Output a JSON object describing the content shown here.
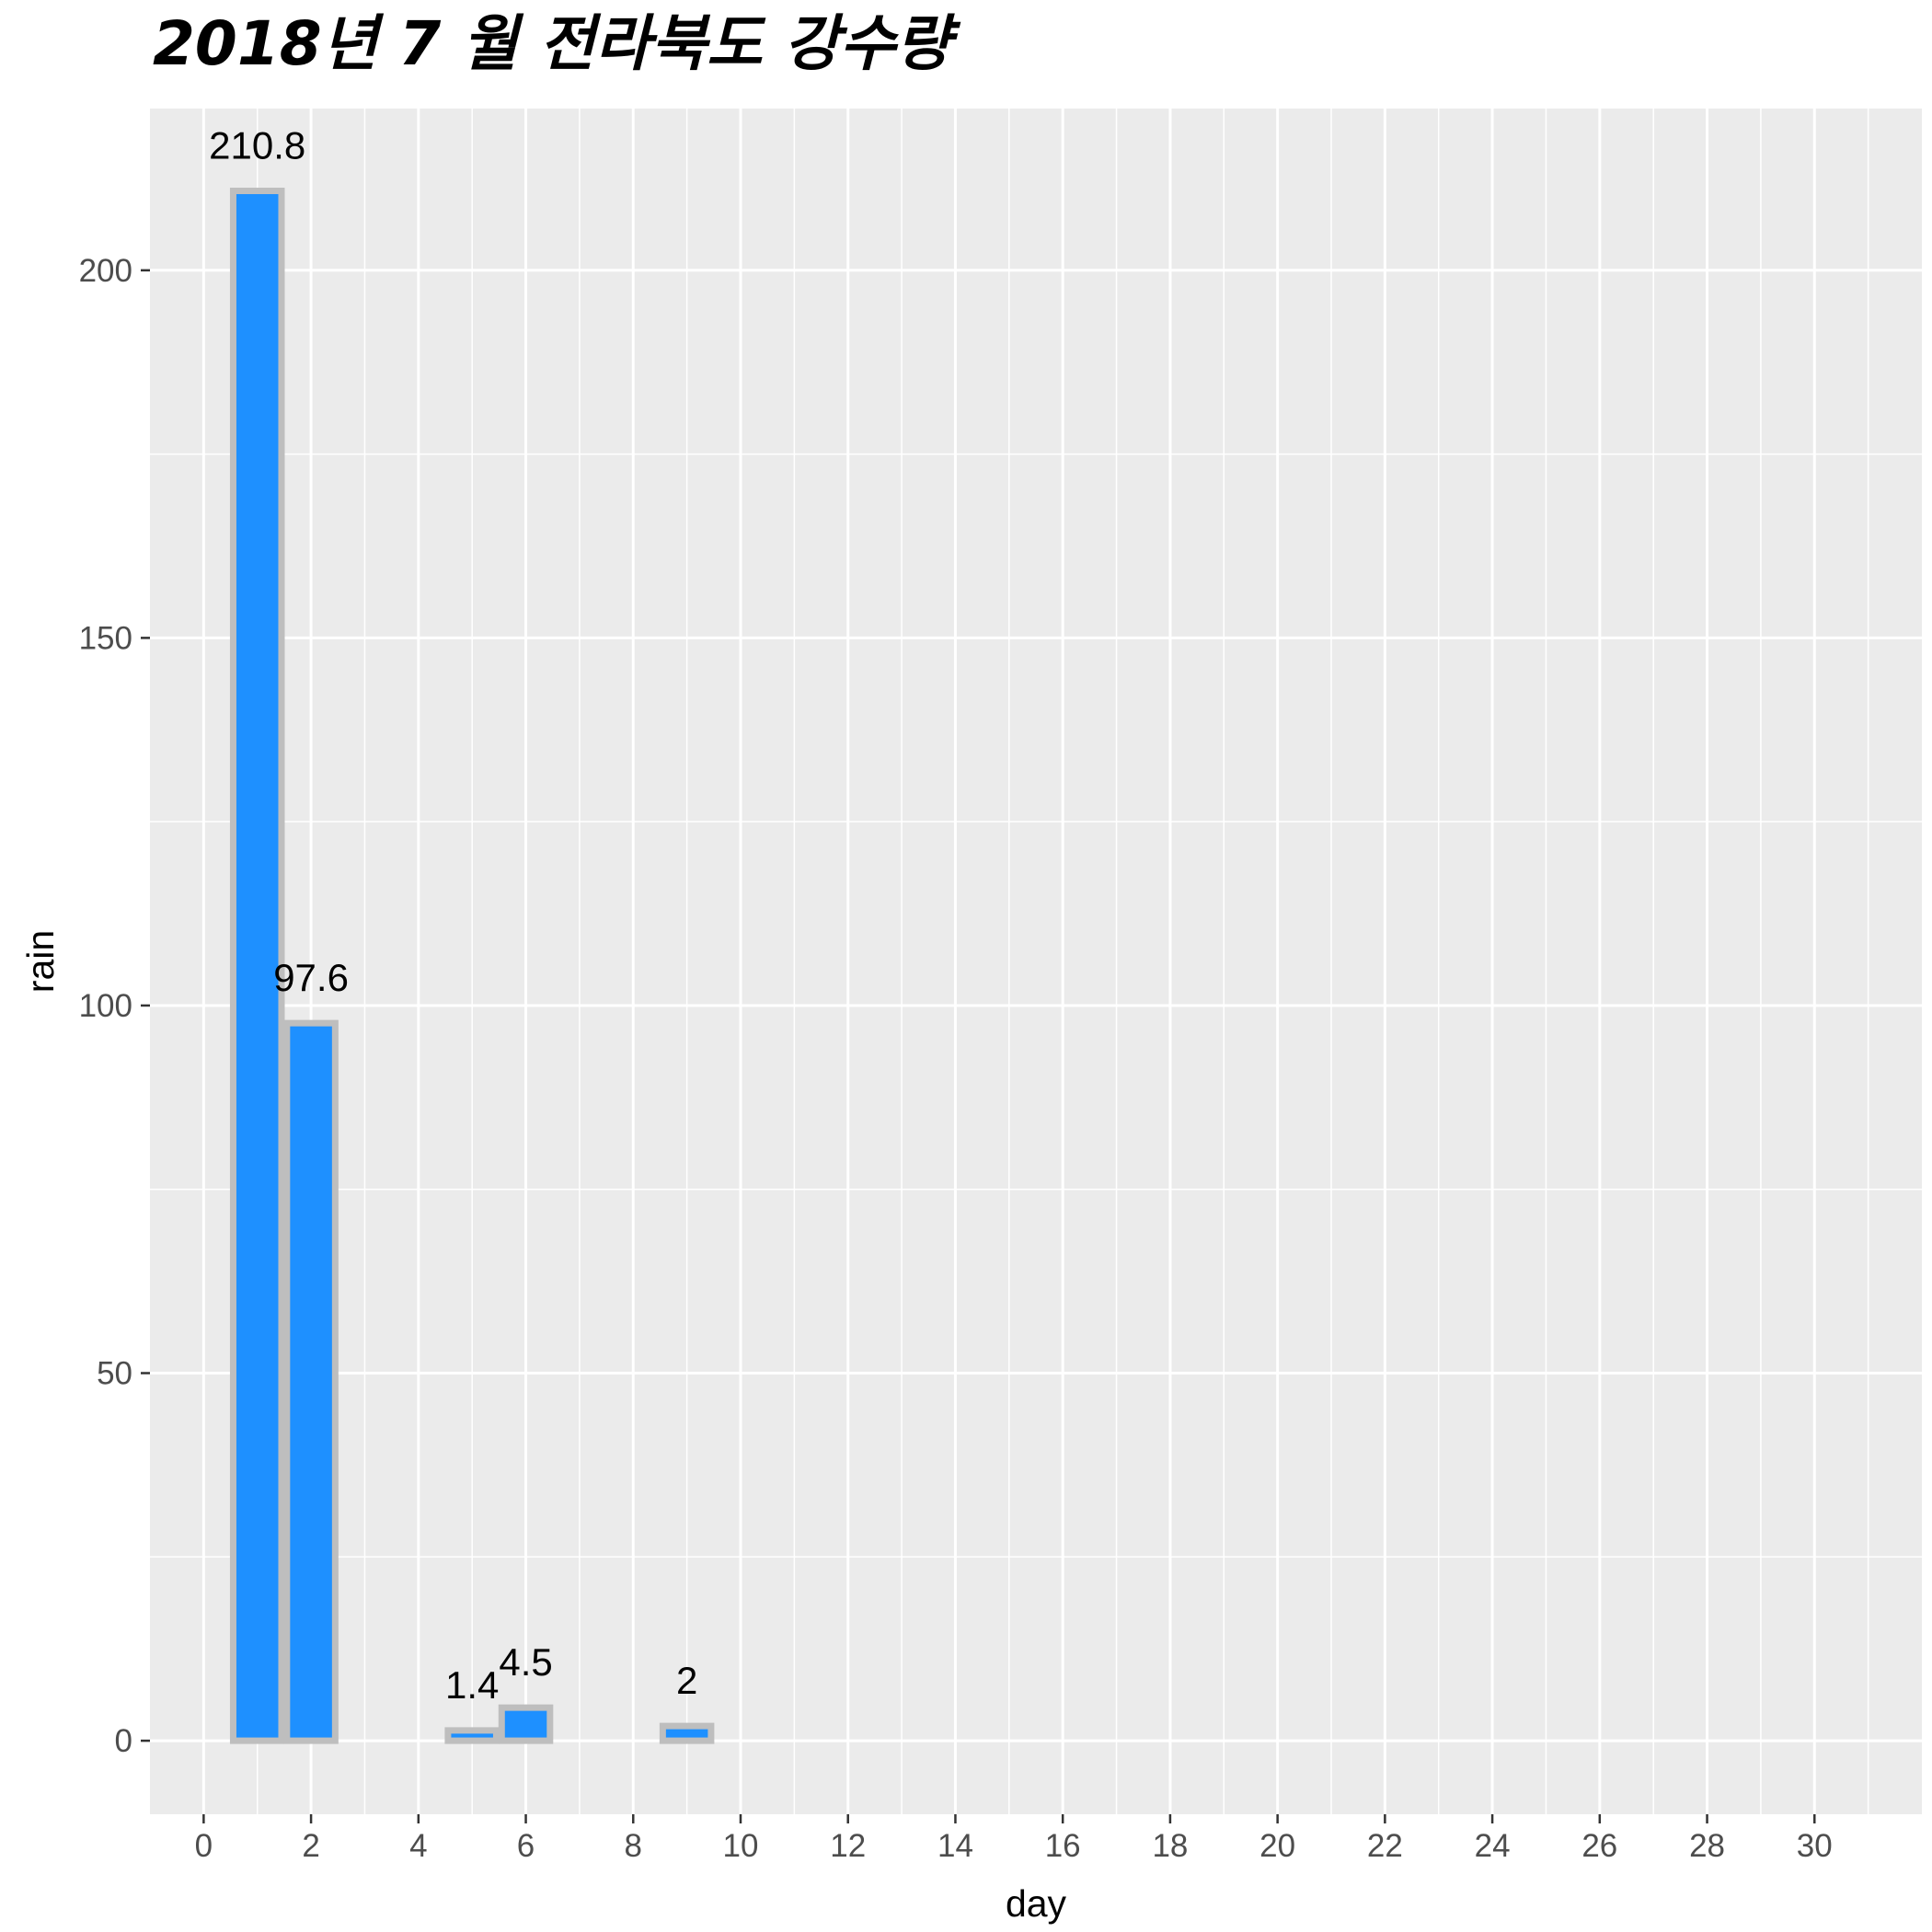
{
  "chart_data": {
    "type": "bar",
    "title": "2018년 7 월 전라북도 강수량",
    "xlabel": "day",
    "ylabel": "rain",
    "x_ticks": [
      0,
      2,
      4,
      6,
      8,
      10,
      12,
      14,
      16,
      18,
      20,
      22,
      24,
      26,
      28,
      30
    ],
    "y_ticks": [
      0,
      50,
      100,
      150,
      200
    ],
    "xlim": [
      -1,
      32
    ],
    "ylim": [
      -10,
      222
    ],
    "bars": [
      {
        "day": 1,
        "rain": 210.8,
        "label": "210.8"
      },
      {
        "day": 2,
        "rain": 97.6,
        "label": "97.6"
      },
      {
        "day": 5,
        "rain": 1.4,
        "label": "1.4"
      },
      {
        "day": 6,
        "rain": 4.5,
        "label": "4.5"
      },
      {
        "day": 9,
        "rain": 2,
        "label": "2"
      }
    ],
    "bar_fill": "#1E90FF",
    "bar_outline": "#BEBEBE",
    "panel_background": "#EBEBEB",
    "grid": true,
    "legend": "none"
  }
}
